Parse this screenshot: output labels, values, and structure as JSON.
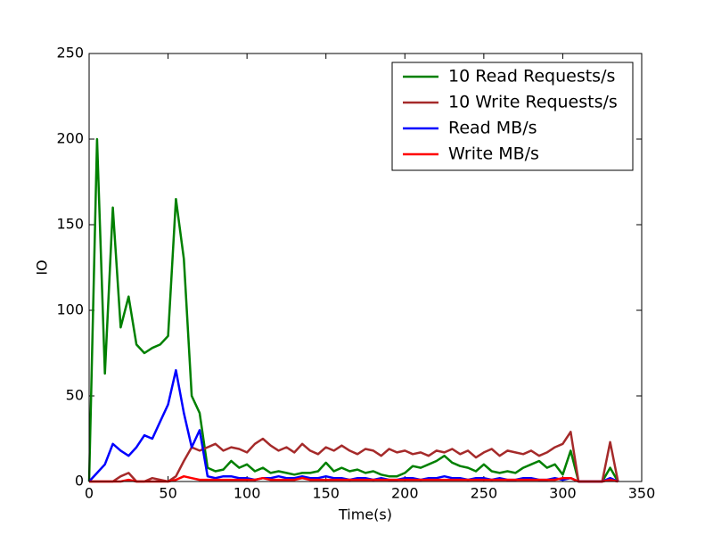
{
  "chart_data": {
    "type": "line",
    "xlabel": "Time(s)",
    "ylabel": "IO",
    "x": [
      0,
      5,
      10,
      15,
      20,
      25,
      30,
      35,
      40,
      45,
      50,
      55,
      60,
      65,
      70,
      75,
      80,
      85,
      90,
      95,
      100,
      105,
      110,
      115,
      120,
      125,
      130,
      135,
      140,
      145,
      150,
      155,
      160,
      165,
      170,
      175,
      180,
      185,
      190,
      195,
      200,
      205,
      210,
      215,
      220,
      225,
      230,
      235,
      240,
      245,
      250,
      255,
      260,
      265,
      270,
      275,
      280,
      285,
      290,
      295,
      300,
      305,
      310,
      315,
      320,
      325,
      330,
      335
    ],
    "series": [
      {
        "name": "10 Read Requests/s",
        "color": "#008000",
        "values": [
          0,
          200,
          63,
          160,
          90,
          108,
          80,
          75,
          78,
          80,
          85,
          165,
          130,
          50,
          40,
          8,
          6,
          7,
          12,
          8,
          10,
          6,
          8,
          5,
          6,
          5,
          4,
          5,
          5,
          6,
          11,
          6,
          8,
          6,
          7,
          5,
          6,
          4,
          3,
          3,
          5,
          9,
          8,
          10,
          12,
          15,
          11,
          9,
          8,
          6,
          10,
          6,
          5,
          6,
          5,
          8,
          10,
          12,
          8,
          10,
          4,
          18,
          0,
          0,
          0,
          0,
          8,
          0
        ]
      },
      {
        "name": "10 Write Requests/s",
        "color": "#a52a2a",
        "values": [
          0,
          0,
          0,
          0,
          3,
          5,
          0,
          0,
          2,
          1,
          0,
          3,
          12,
          20,
          18,
          20,
          22,
          18,
          20,
          19,
          17,
          22,
          25,
          21,
          18,
          20,
          17,
          22,
          18,
          16,
          20,
          18,
          21,
          18,
          16,
          19,
          18,
          15,
          19,
          17,
          18,
          16,
          17,
          15,
          18,
          17,
          19,
          16,
          18,
          14,
          17,
          19,
          15,
          18,
          17,
          16,
          18,
          15,
          17,
          20,
          22,
          29,
          0,
          0,
          0,
          0,
          23,
          0
        ]
      },
      {
        "name": "Read MB/s",
        "color": "#0000ff",
        "values": [
          0,
          5,
          10,
          22,
          18,
          15,
          20,
          27,
          25,
          35,
          45,
          65,
          40,
          20,
          30,
          3,
          2,
          3,
          3,
          2,
          2,
          1,
          2,
          2,
          3,
          2,
          2,
          3,
          2,
          2,
          3,
          2,
          2,
          1,
          2,
          2,
          1,
          2,
          1,
          1,
          2,
          2,
          1,
          2,
          2,
          3,
          2,
          2,
          1,
          2,
          2,
          1,
          2,
          1,
          1,
          2,
          2,
          1,
          1,
          2,
          1,
          2,
          0,
          0,
          0,
          0,
          2,
          0
        ]
      },
      {
        "name": "Write MB/s",
        "color": "#ff0000",
        "values": [
          0,
          0,
          0,
          0,
          0,
          1,
          0,
          0,
          0,
          0,
          0,
          1,
          3,
          2,
          1,
          1,
          1,
          1,
          1,
          1,
          1,
          1,
          2,
          1,
          1,
          1,
          1,
          2,
          1,
          1,
          1,
          1,
          1,
          1,
          1,
          1,
          1,
          1,
          1,
          1,
          1,
          1,
          1,
          1,
          1,
          1,
          1,
          1,
          1,
          1,
          1,
          1,
          1,
          1,
          1,
          1,
          1,
          1,
          1,
          1,
          2,
          2,
          0,
          0,
          0,
          0,
          1,
          0
        ]
      }
    ],
    "xlim": [
      0,
      350
    ],
    "xticks": [
      0,
      50,
      100,
      150,
      200,
      250,
      300,
      350
    ],
    "ylim": [
      0,
      250
    ],
    "yticks": [
      0,
      50,
      100,
      150,
      200,
      250
    ],
    "legend": "upper right"
  }
}
